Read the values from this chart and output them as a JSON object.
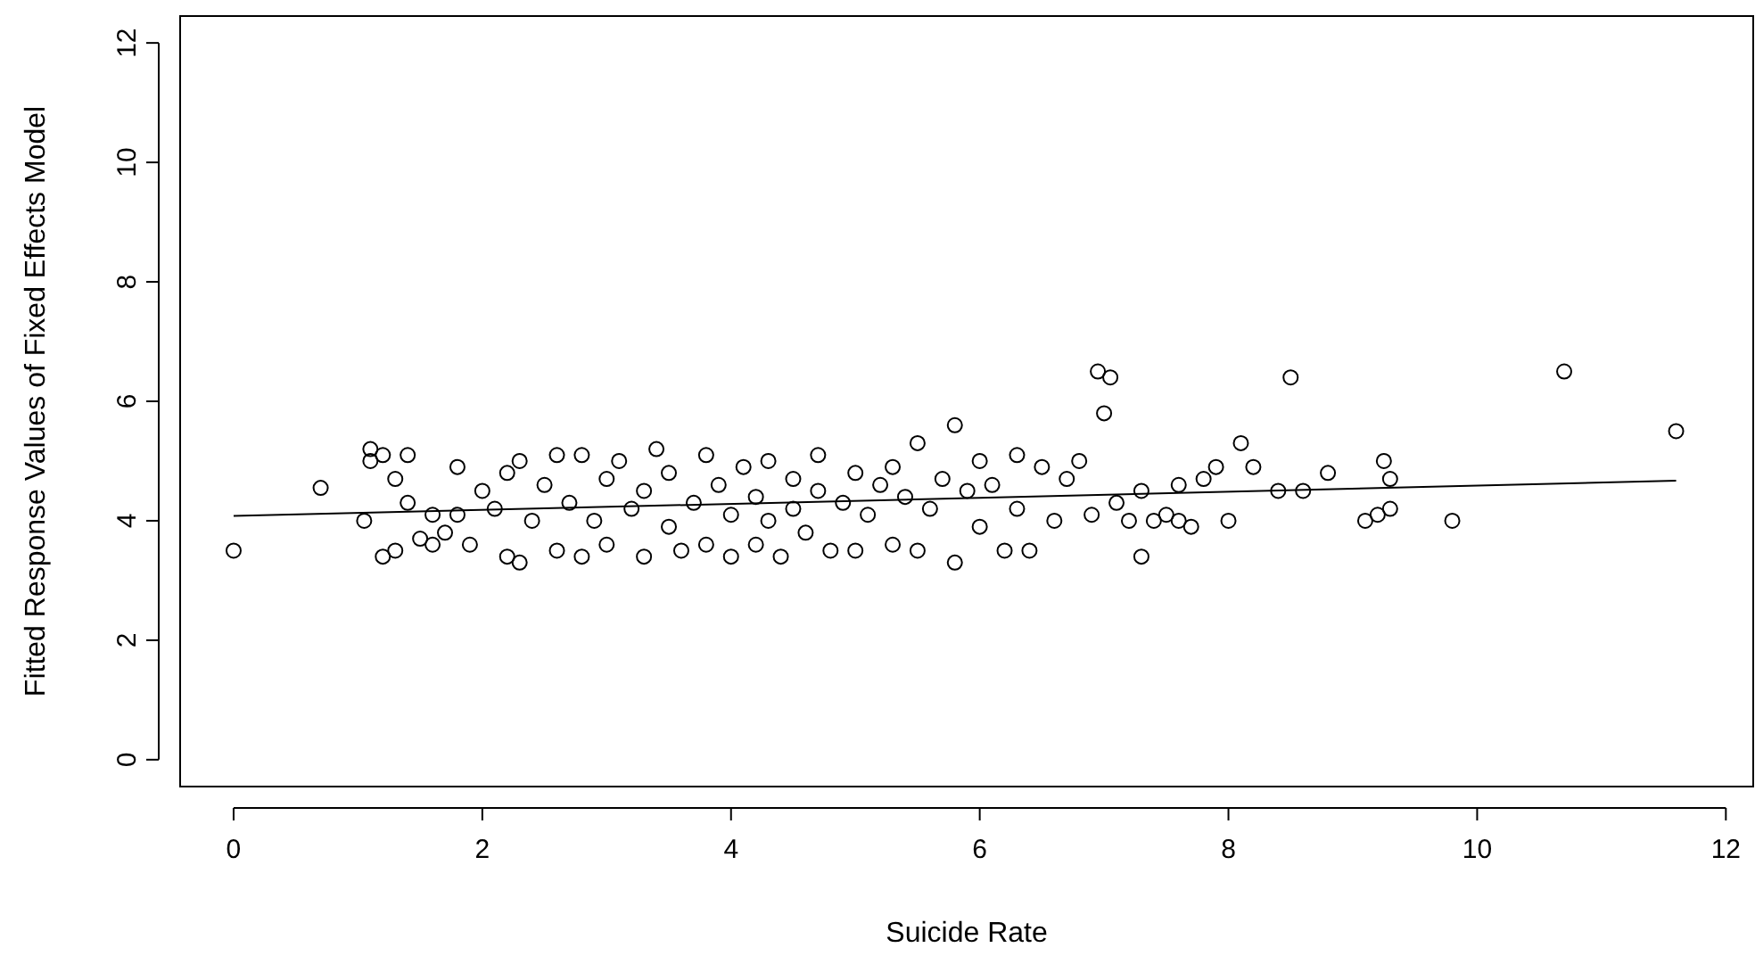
{
  "chart_data": {
    "type": "scatter",
    "xlabel": "Suicide Rate",
    "ylabel": "Fitted Response Values of Fixed Effects Model",
    "xlim": [
      -0.43,
      12.22
    ],
    "ylim": [
      -0.45,
      12.45
    ],
    "xticks": [
      0,
      2,
      4,
      6,
      8,
      10,
      12
    ],
    "yticks": [
      0,
      2,
      4,
      6,
      8,
      10,
      12
    ],
    "grid": false,
    "series": [
      {
        "color": "#000000",
        "marker": "circle",
        "x": [
          0,
          0.7,
          1.05,
          1.1,
          1.1,
          1.2,
          1.2,
          1.3,
          1.3,
          1.4,
          1.4,
          1.5,
          1.6,
          1.6,
          1.7,
          1.8,
          1.8,
          1.9,
          2.0,
          2.1,
          2.2,
          2.2,
          2.3,
          2.3,
          2.4,
          2.5,
          2.6,
          2.6,
          2.7,
          2.8,
          2.8,
          2.9,
          3.0,
          3.0,
          3.1,
          3.2,
          3.3,
          3.3,
          3.4,
          3.5,
          3.5,
          3.6,
          3.7,
          3.8,
          3.8,
          3.9,
          4.0,
          4.0,
          4.1,
          4.2,
          4.2,
          4.3,
          4.3,
          4.4,
          4.5,
          4.5,
          4.6,
          4.7,
          4.7,
          4.8,
          4.9,
          5.0,
          5.0,
          5.1,
          5.2,
          5.3,
          5.3,
          5.4,
          5.5,
          5.5,
          5.6,
          5.7,
          5.8,
          5.8,
          5.9,
          6.0,
          6.0,
          6.1,
          6.2,
          6.3,
          6.3,
          6.4,
          6.5,
          6.6,
          6.7,
          6.8,
          6.9,
          6.95,
          7.0,
          7.05,
          7.1,
          7.2,
          7.3,
          7.3,
          7.4,
          7.5,
          7.6,
          7.6,
          7.7,
          7.8,
          7.9,
          8.0,
          8.1,
          8.2,
          8.4,
          8.5,
          8.6,
          8.8,
          9.1,
          9.2,
          9.25,
          9.3,
          9.3,
          9.8,
          10.7,
          11.6
        ],
        "values": [
          3.5,
          4.55,
          4.0,
          5.0,
          5.2,
          5.1,
          3.4,
          3.5,
          4.7,
          5.1,
          4.3,
          3.7,
          4.1,
          3.6,
          3.8,
          4.1,
          4.9,
          3.6,
          4.5,
          4.2,
          3.4,
          4.8,
          3.3,
          5.0,
          4.0,
          4.6,
          3.5,
          5.1,
          4.3,
          3.4,
          5.1,
          4.0,
          3.6,
          4.7,
          5.0,
          4.2,
          3.4,
          4.5,
          5.2,
          3.9,
          4.8,
          3.5,
          4.3,
          5.1,
          3.6,
          4.6,
          4.1,
          3.4,
          4.9,
          4.4,
          3.6,
          5.0,
          4.0,
          3.4,
          4.7,
          4.2,
          3.8,
          5.1,
          4.5,
          3.5,
          4.3,
          4.8,
          3.5,
          4.1,
          4.6,
          3.6,
          4.9,
          4.4,
          3.5,
          5.3,
          4.2,
          4.7,
          3.3,
          5.6,
          4.5,
          5.0,
          3.9,
          4.6,
          3.5,
          4.2,
          5.1,
          3.5,
          4.9,
          4.0,
          4.7,
          5.0,
          4.1,
          6.5,
          5.8,
          6.4,
          4.3,
          4.0,
          3.4,
          4.5,
          4.0,
          4.1,
          4.6,
          4.0,
          3.9,
          4.7,
          4.9,
          4.0,
          5.3,
          4.9,
          4.5,
          6.4,
          4.5,
          4.8,
          4.0,
          4.1,
          5.0,
          4.7,
          4.2,
          4.0,
          6.5,
          5.5
        ]
      },
      {
        "type": "line",
        "marker": "none",
        "color": "#000000",
        "x": [
          0,
          11.6
        ],
        "values": [
          4.08,
          4.67
        ]
      }
    ]
  }
}
